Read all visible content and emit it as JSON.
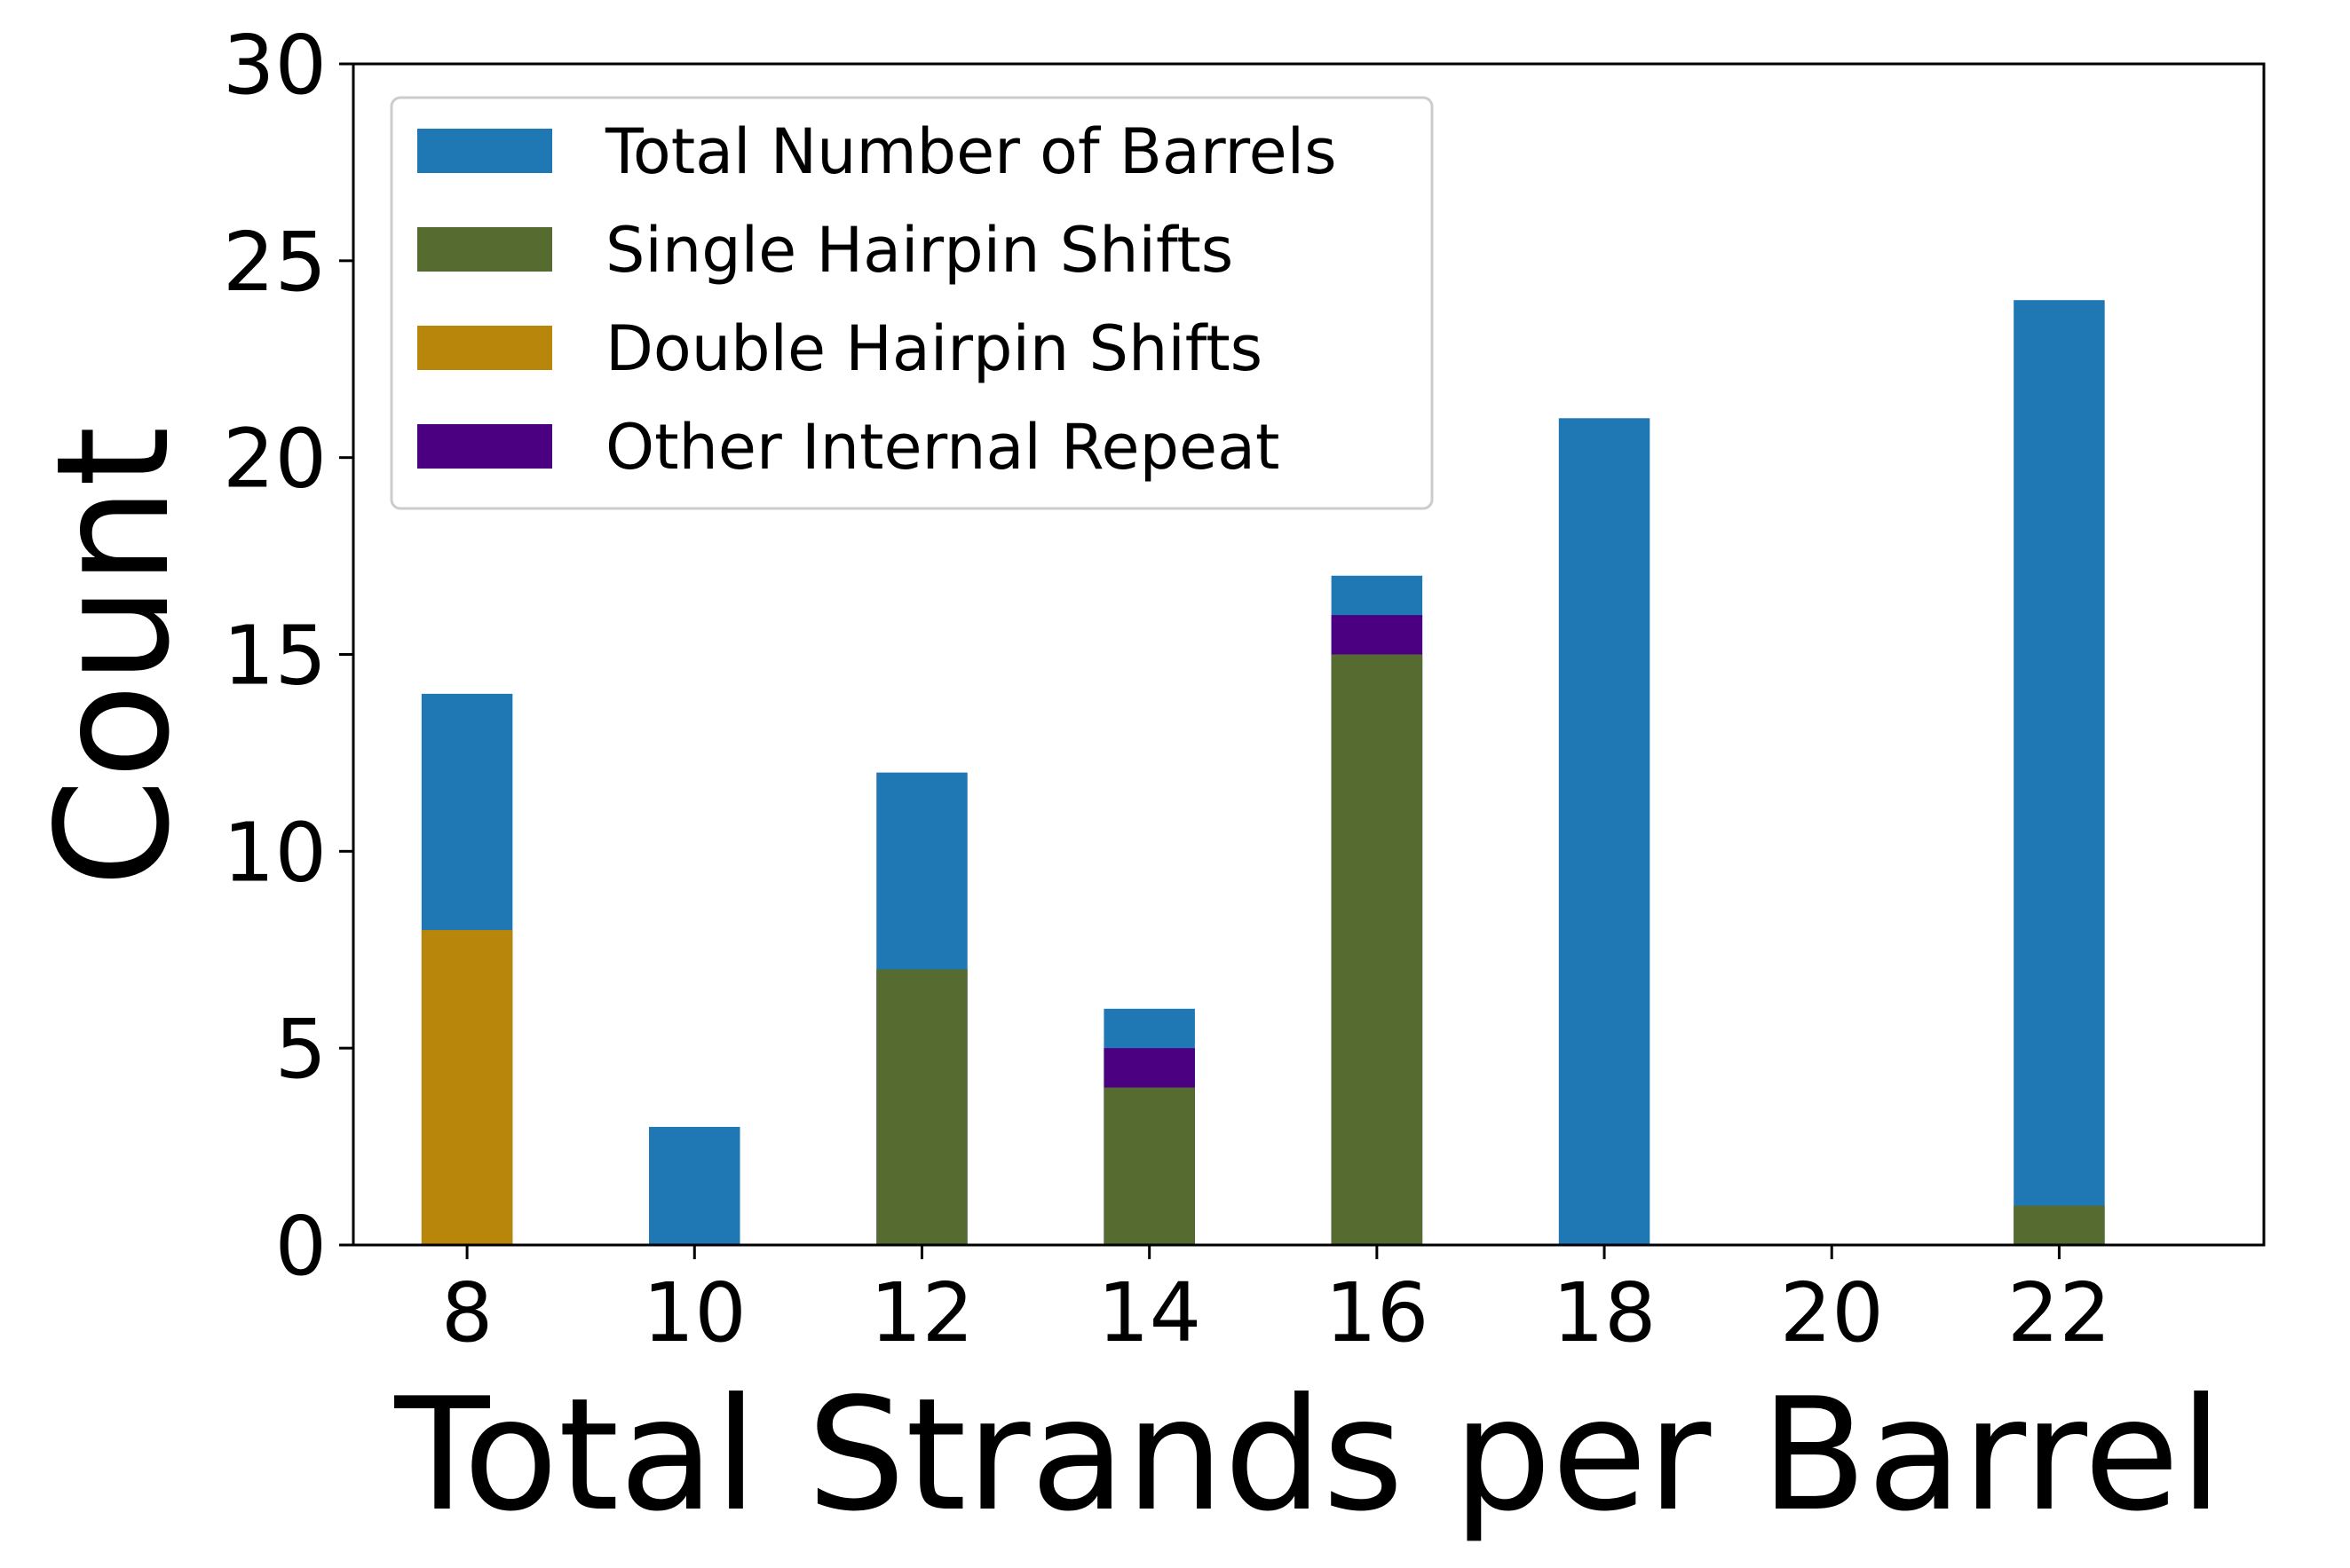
{
  "chart_data": {
    "type": "bar",
    "xlabel": "Total Strands per Barrel",
    "ylabel": "Count",
    "xlim": [
      7,
      23.8
    ],
    "ylim": [
      0,
      30
    ],
    "x_ticks": [
      "8",
      "10",
      "12",
      "14",
      "16",
      "18",
      "20",
      "22"
    ],
    "y_ticks": [
      "0",
      "5",
      "10",
      "15",
      "20",
      "25",
      "30"
    ],
    "x": [
      8,
      10,
      12,
      14,
      16,
      18,
      20,
      22
    ],
    "bar_width": 0.8,
    "overlay": true,
    "legend_position": "top-left",
    "grid": false,
    "series": [
      {
        "name": "Total Number of Barrels",
        "color": "#1f77b4",
        "values": [
          14,
          3,
          12,
          6,
          17,
          21,
          0,
          24
        ]
      },
      {
        "name": "Other Internal Repeat",
        "color": "#4b0082",
        "values": [
          0,
          0,
          0,
          5,
          16,
          0,
          0,
          0
        ]
      },
      {
        "name": "Single Hairpin Shifts",
        "color": "#556b2f",
        "values": [
          0,
          0,
          7,
          4,
          15,
          0,
          0,
          1
        ]
      },
      {
        "name": "Double Hairpin Shifts",
        "color": "#b8860b",
        "values": [
          8,
          0,
          0,
          0,
          0,
          0,
          0,
          0
        ]
      }
    ],
    "legend_order": [
      "Total Number of Barrels",
      "Single Hairpin Shifts",
      "Double Hairpin Shifts",
      "Other Internal Repeat"
    ]
  }
}
